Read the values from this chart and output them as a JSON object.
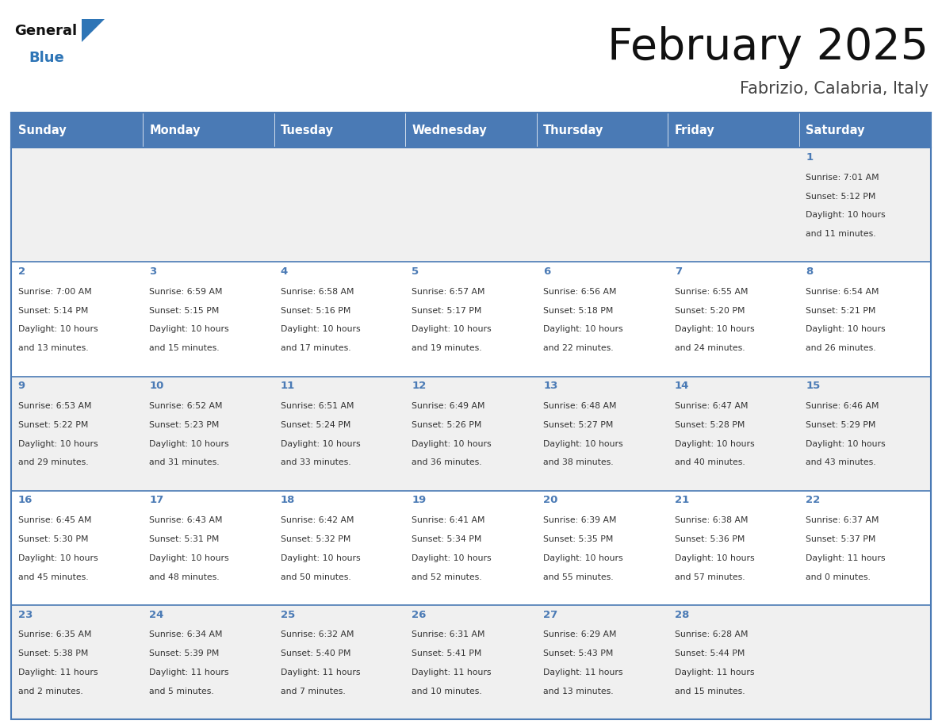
{
  "title": "February 2025",
  "subtitle": "Fabrizio, Calabria, Italy",
  "days_of_week": [
    "Sunday",
    "Monday",
    "Tuesday",
    "Wednesday",
    "Thursday",
    "Friday",
    "Saturday"
  ],
  "header_bg": "#4a7ab5",
  "header_text": "#FFFFFF",
  "row_bg_odd": "#f0f0f0",
  "row_bg_even": "#FFFFFF",
  "day_num_color": "#4a7ab5",
  "text_color": "#333333",
  "border_color": "#4a7ab5",
  "calendar_data": [
    {
      "day": 1,
      "col": 6,
      "row": 0,
      "sunrise": "7:01 AM",
      "sunset": "5:12 PM",
      "daylight": "10 hours",
      "daylight2": "and 11 minutes."
    },
    {
      "day": 2,
      "col": 0,
      "row": 1,
      "sunrise": "7:00 AM",
      "sunset": "5:14 PM",
      "daylight": "10 hours",
      "daylight2": "and 13 minutes."
    },
    {
      "day": 3,
      "col": 1,
      "row": 1,
      "sunrise": "6:59 AM",
      "sunset": "5:15 PM",
      "daylight": "10 hours",
      "daylight2": "and 15 minutes."
    },
    {
      "day": 4,
      "col": 2,
      "row": 1,
      "sunrise": "6:58 AM",
      "sunset": "5:16 PM",
      "daylight": "10 hours",
      "daylight2": "and 17 minutes."
    },
    {
      "day": 5,
      "col": 3,
      "row": 1,
      "sunrise": "6:57 AM",
      "sunset": "5:17 PM",
      "daylight": "10 hours",
      "daylight2": "and 19 minutes."
    },
    {
      "day": 6,
      "col": 4,
      "row": 1,
      "sunrise": "6:56 AM",
      "sunset": "5:18 PM",
      "daylight": "10 hours",
      "daylight2": "and 22 minutes."
    },
    {
      "day": 7,
      "col": 5,
      "row": 1,
      "sunrise": "6:55 AM",
      "sunset": "5:20 PM",
      "daylight": "10 hours",
      "daylight2": "and 24 minutes."
    },
    {
      "day": 8,
      "col": 6,
      "row": 1,
      "sunrise": "6:54 AM",
      "sunset": "5:21 PM",
      "daylight": "10 hours",
      "daylight2": "and 26 minutes."
    },
    {
      "day": 9,
      "col": 0,
      "row": 2,
      "sunrise": "6:53 AM",
      "sunset": "5:22 PM",
      "daylight": "10 hours",
      "daylight2": "and 29 minutes."
    },
    {
      "day": 10,
      "col": 1,
      "row": 2,
      "sunrise": "6:52 AM",
      "sunset": "5:23 PM",
      "daylight": "10 hours",
      "daylight2": "and 31 minutes."
    },
    {
      "day": 11,
      "col": 2,
      "row": 2,
      "sunrise": "6:51 AM",
      "sunset": "5:24 PM",
      "daylight": "10 hours",
      "daylight2": "and 33 minutes."
    },
    {
      "day": 12,
      "col": 3,
      "row": 2,
      "sunrise": "6:49 AM",
      "sunset": "5:26 PM",
      "daylight": "10 hours",
      "daylight2": "and 36 minutes."
    },
    {
      "day": 13,
      "col": 4,
      "row": 2,
      "sunrise": "6:48 AM",
      "sunset": "5:27 PM",
      "daylight": "10 hours",
      "daylight2": "and 38 minutes."
    },
    {
      "day": 14,
      "col": 5,
      "row": 2,
      "sunrise": "6:47 AM",
      "sunset": "5:28 PM",
      "daylight": "10 hours",
      "daylight2": "and 40 minutes."
    },
    {
      "day": 15,
      "col": 6,
      "row": 2,
      "sunrise": "6:46 AM",
      "sunset": "5:29 PM",
      "daylight": "10 hours",
      "daylight2": "and 43 minutes."
    },
    {
      "day": 16,
      "col": 0,
      "row": 3,
      "sunrise": "6:45 AM",
      "sunset": "5:30 PM",
      "daylight": "10 hours",
      "daylight2": "and 45 minutes."
    },
    {
      "day": 17,
      "col": 1,
      "row": 3,
      "sunrise": "6:43 AM",
      "sunset": "5:31 PM",
      "daylight": "10 hours",
      "daylight2": "and 48 minutes."
    },
    {
      "day": 18,
      "col": 2,
      "row": 3,
      "sunrise": "6:42 AM",
      "sunset": "5:32 PM",
      "daylight": "10 hours",
      "daylight2": "and 50 minutes."
    },
    {
      "day": 19,
      "col": 3,
      "row": 3,
      "sunrise": "6:41 AM",
      "sunset": "5:34 PM",
      "daylight": "10 hours",
      "daylight2": "and 52 minutes."
    },
    {
      "day": 20,
      "col": 4,
      "row": 3,
      "sunrise": "6:39 AM",
      "sunset": "5:35 PM",
      "daylight": "10 hours",
      "daylight2": "and 55 minutes."
    },
    {
      "day": 21,
      "col": 5,
      "row": 3,
      "sunrise": "6:38 AM",
      "sunset": "5:36 PM",
      "daylight": "10 hours",
      "daylight2": "and 57 minutes."
    },
    {
      "day": 22,
      "col": 6,
      "row": 3,
      "sunrise": "6:37 AM",
      "sunset": "5:37 PM",
      "daylight": "11 hours",
      "daylight2": "and 0 minutes."
    },
    {
      "day": 23,
      "col": 0,
      "row": 4,
      "sunrise": "6:35 AM",
      "sunset": "5:38 PM",
      "daylight": "11 hours",
      "daylight2": "and 2 minutes."
    },
    {
      "day": 24,
      "col": 1,
      "row": 4,
      "sunrise": "6:34 AM",
      "sunset": "5:39 PM",
      "daylight": "11 hours",
      "daylight2": "and 5 minutes."
    },
    {
      "day": 25,
      "col": 2,
      "row": 4,
      "sunrise": "6:32 AM",
      "sunset": "5:40 PM",
      "daylight": "11 hours",
      "daylight2": "and 7 minutes."
    },
    {
      "day": 26,
      "col": 3,
      "row": 4,
      "sunrise": "6:31 AM",
      "sunset": "5:41 PM",
      "daylight": "11 hours",
      "daylight2": "and 10 minutes."
    },
    {
      "day": 27,
      "col": 4,
      "row": 4,
      "sunrise": "6:29 AM",
      "sunset": "5:43 PM",
      "daylight": "11 hours",
      "daylight2": "and 13 minutes."
    },
    {
      "day": 28,
      "col": 5,
      "row": 4,
      "sunrise": "6:28 AM",
      "sunset": "5:44 PM",
      "daylight": "11 hours",
      "daylight2": "and 15 minutes."
    }
  ],
  "fig_width": 11.88,
  "fig_height": 9.18,
  "dpi": 100
}
